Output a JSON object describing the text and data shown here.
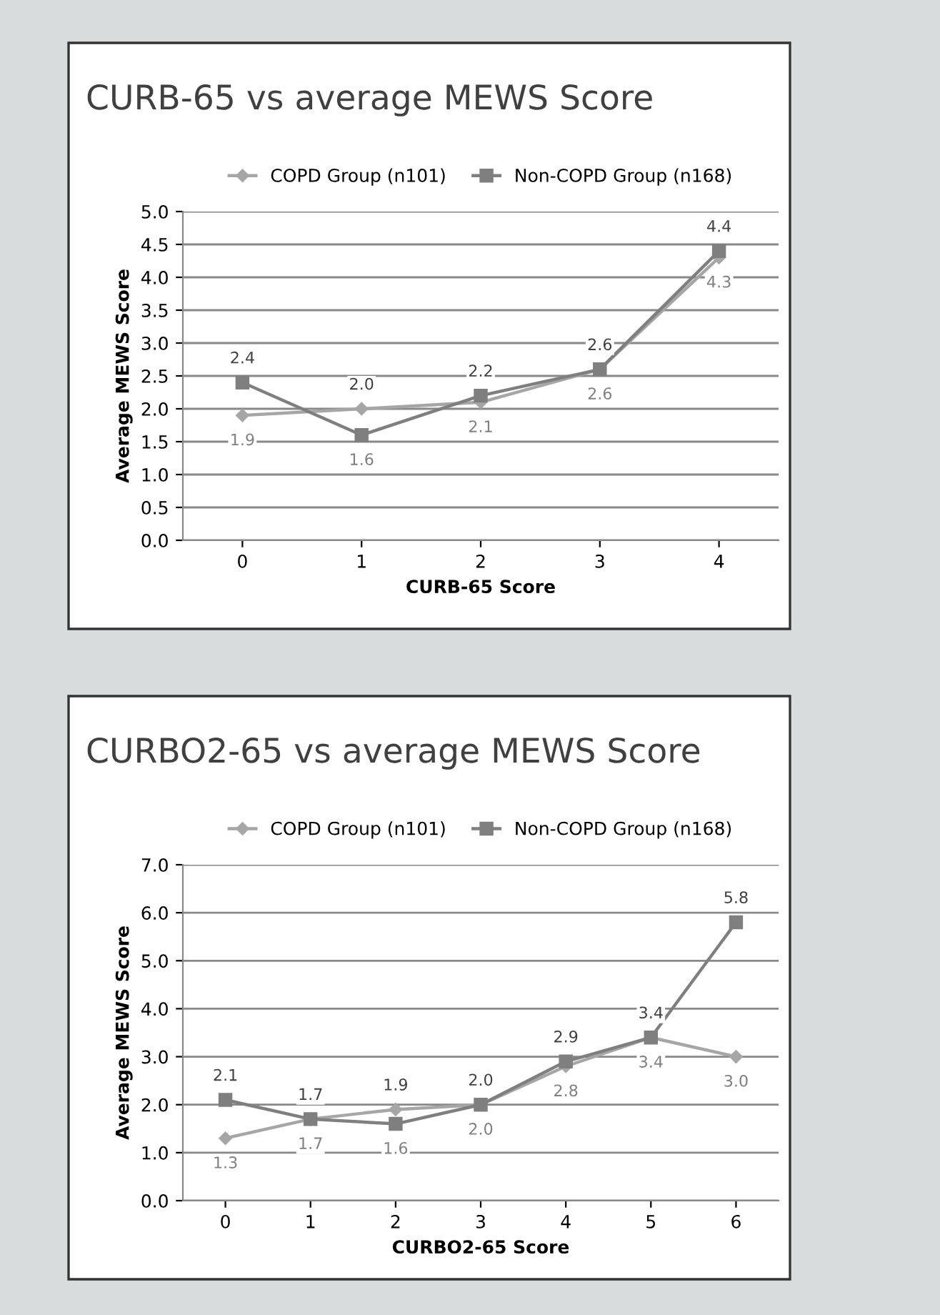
{
  "chart_data": [
    {
      "type": "line",
      "title": "CURB-65 vs average MEWS Score",
      "xlabel": "CURB-65 Score",
      "ylabel": "Average MEWS Score",
      "categories": [
        "0",
        "1",
        "2",
        "3",
        "4"
      ],
      "series": [
        {
          "name": "COPD Group (n101)",
          "color": "#a6a6a6",
          "marker": "diamond",
          "values": [
            1.9,
            2.0,
            2.1,
            2.6,
            4.3
          ],
          "value_labels": [
            "1.9",
            "2.0",
            "2.1",
            "2.6",
            "4.3"
          ]
        },
        {
          "name": "Non-COPD Group (n168)",
          "color": "#7f7f7f",
          "marker": "square",
          "values": [
            2.4,
            1.6,
            2.2,
            2.6,
            4.4
          ],
          "value_labels": [
            "2.4",
            "1.6",
            "2.2",
            "2.6",
            "4.4"
          ]
        }
      ],
      "ylim": [
        0,
        5
      ],
      "yticks": [
        {
          "value": 0,
          "label": "0.0"
        },
        {
          "value": 0.5,
          "label": "0.5"
        },
        {
          "value": 1,
          "label": "1.0"
        },
        {
          "value": 1.5,
          "label": "1.5"
        },
        {
          "value": 2,
          "label": "2.0"
        },
        {
          "value": 2.5,
          "label": "2.5"
        },
        {
          "value": 3,
          "label": "3.0"
        },
        {
          "value": 3.5,
          "label": "3.5"
        },
        {
          "value": 4,
          "label": "4.0"
        },
        {
          "value": 4.5,
          "label": "4.5"
        },
        {
          "value": 5,
          "label": "5.0"
        }
      ],
      "grid": "y",
      "legend": "top"
    },
    {
      "type": "line",
      "title": "CURBO2-65 vs average MEWS Score",
      "xlabel": "CURBO2-65 Score",
      "ylabel": "Average MEWS Score",
      "categories": [
        "0",
        "1",
        "2",
        "3",
        "4",
        "5",
        "6"
      ],
      "series": [
        {
          "name": "COPD Group (n101)",
          "color": "#a6a6a6",
          "marker": "diamond",
          "values": [
            1.3,
            1.7,
            1.9,
            2.0,
            2.8,
            3.4,
            3.0
          ],
          "value_labels": [
            "1.3",
            "1.7",
            "1.9",
            "2.0",
            "2.8",
            "3.4",
            "3.0"
          ]
        },
        {
          "name": "Non-COPD Group (n168)",
          "color": "#7f7f7f",
          "marker": "square",
          "values": [
            2.1,
            1.7,
            1.6,
            2.0,
            2.9,
            3.4,
            5.8
          ],
          "value_labels": [
            "2.1",
            "1.7",
            "1.6",
            "2.0",
            "2.9",
            "3.4",
            "5.8"
          ]
        }
      ],
      "ylim": [
        0,
        7
      ],
      "yticks": [
        {
          "value": 0,
          "label": "0.0"
        },
        {
          "value": 1,
          "label": "1.0"
        },
        {
          "value": 2,
          "label": "2.0"
        },
        {
          "value": 3,
          "label": "3.0"
        },
        {
          "value": 4,
          "label": "4.0"
        },
        {
          "value": 5,
          "label": "5.0"
        },
        {
          "value": 6,
          "label": "6.0"
        },
        {
          "value": 7,
          "label": "7.0"
        }
      ],
      "grid": "y",
      "legend": "top"
    }
  ]
}
